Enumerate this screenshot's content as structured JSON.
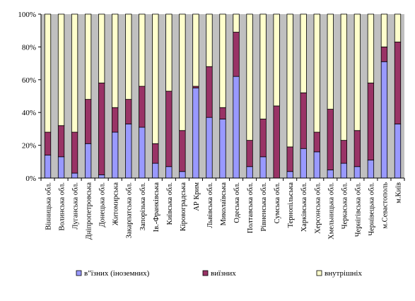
{
  "chart_data": {
    "type": "bar",
    "stacked": "percent",
    "categories": [
      "Вінницька обл.",
      "Волинська обл.",
      "Луганська обл.",
      "Дніпропетровська",
      "Донецька обл.",
      "Житомирська",
      "Закарпатська обл.",
      "Запорізька обл.",
      "Ів.-Франківська",
      "Київська обл.",
      "Кіровоградська",
      "АР Крим",
      "Львівська обл.",
      "Миколаївська",
      "Одеська обл.",
      "Полтавська обл.",
      "Рівненська обл.",
      "Сумська обл.",
      "Тернопільська",
      "Харківська обл.",
      "Херсонська обл.",
      "Хмельницька обл.",
      "Черкаська обл.",
      "Чернігівська обл.",
      "Чернівецька обл.",
      "м.Севастополь",
      "м.Київ"
    ],
    "series": [
      {
        "name": "в\"їзних (іноземних)",
        "color": "#9999ff",
        "values": [
          14,
          13,
          3,
          21,
          2,
          28,
          33,
          31,
          9,
          7,
          4,
          55,
          37,
          36,
          62,
          7,
          13,
          0,
          4,
          18,
          16,
          5,
          9,
          7,
          11,
          71,
          33
        ]
      },
      {
        "name": "виїзних",
        "color": "#993366",
        "values": [
          14,
          19,
          25,
          27,
          56,
          15,
          15,
          25,
          12,
          46,
          25,
          1,
          31,
          7,
          27,
          16,
          23,
          44,
          15,
          34,
          12,
          37,
          14,
          22,
          47,
          9,
          50
        ]
      },
      {
        "name": "внутрішніх",
        "color": "#ffffcc",
        "values": [
          72,
          68,
          72,
          52,
          42,
          57,
          52,
          44,
          79,
          47,
          71,
          44,
          32,
          57,
          11,
          77,
          64,
          56,
          81,
          48,
          72,
          58,
          77,
          71,
          42,
          20,
          17
        ]
      }
    ],
    "yaxis": {
      "ylim": [
        0,
        100
      ],
      "ticks": [
        "0%",
        "20%",
        "40%",
        "60%",
        "80%",
        "100%"
      ]
    },
    "grid": false,
    "plot_background": "#c0c0c0",
    "legend_position": "bottom"
  }
}
